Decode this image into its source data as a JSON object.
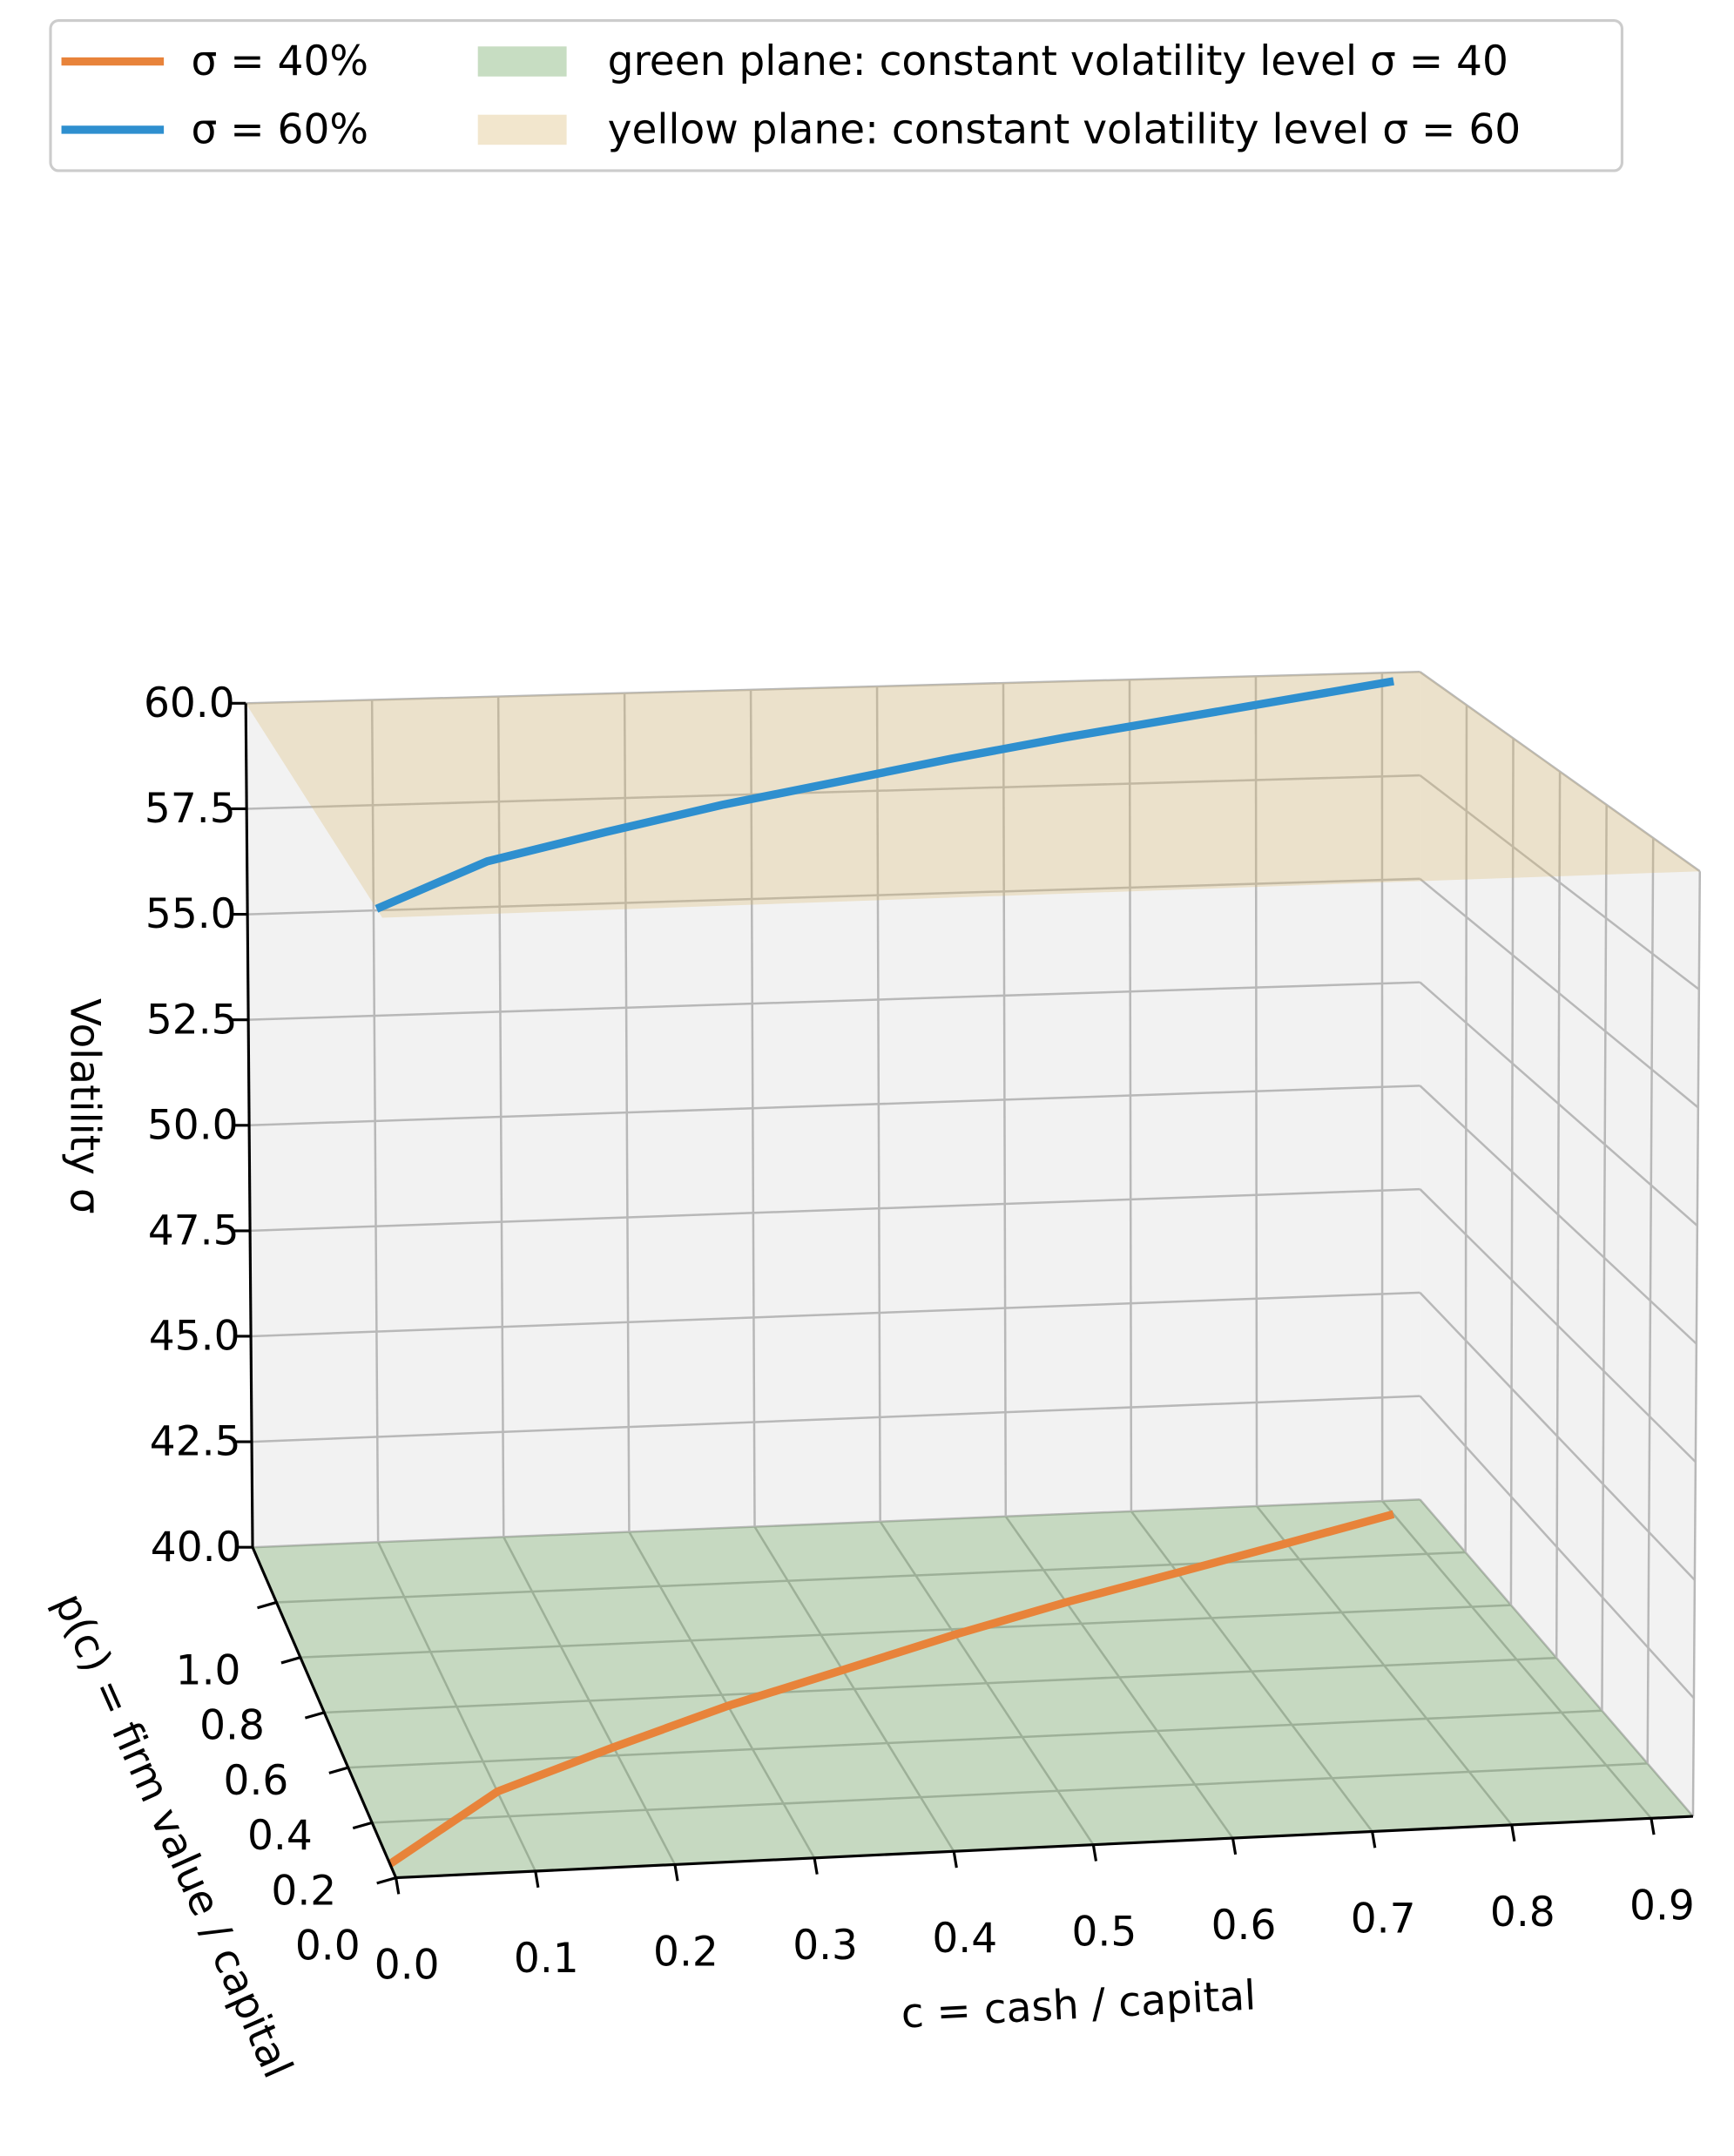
{
  "chart_data": {
    "type": "line3d",
    "xlabel": "c = cash / capital",
    "ylabel": "p(c) = firm value / capital",
    "zlabel": "Volatility σ",
    "xlim": [
      0,
      0.93
    ],
    "ylim": [
      0,
      1.2
    ],
    "zlim": [
      40,
      60
    ],
    "xticks": [
      {
        "value": 0,
        "label": "0.0"
      },
      0.1,
      0.2,
      0.3,
      0.4,
      0.5,
      0.6,
      0.7,
      0.8,
      0.9
    ],
    "yticks": [
      {
        "value": 0,
        "label": "0.0"
      },
      0.2,
      0.4,
      0.6,
      0.8,
      {
        "value": 1,
        "label": "1.0"
      }
    ],
    "zticks": [
      {
        "value": 40,
        "label": "40.0"
      },
      42.5,
      {
        "value": 45,
        "label": "45.0"
      },
      47.5,
      {
        "value": 50,
        "label": "50.0"
      },
      52.5,
      {
        "value": 55,
        "label": "55.0"
      },
      57.5,
      {
        "value": 60,
        "label": "60.0"
      }
    ],
    "grid": true,
    "series": [
      {
        "name": "σ = 40%",
        "color": "#e8833a",
        "z": 40,
        "x": [
          0,
          0.1,
          0.2,
          0.3,
          0.4,
          0.5,
          0.6,
          0.7,
          0.8,
          0.9
        ],
        "y": [
          0.05,
          0.29,
          0.43,
          0.56,
          0.67,
          0.78,
          0.88,
          0.97,
          1.06,
          1.15
        ]
      },
      {
        "name": "σ = 60%",
        "color": "#2e8fcf",
        "z": 60,
        "x": [
          0,
          0.1,
          0.2,
          0.3,
          0.4,
          0.5,
          0.6,
          0.7,
          0.8,
          0.9
        ],
        "y": [
          0.05,
          0.29,
          0.43,
          0.56,
          0.67,
          0.78,
          0.88,
          0.97,
          1.06,
          1.15
        ]
      }
    ],
    "planes": [
      {
        "name": "green plane: constant volatility level σ = 40",
        "level": 40,
        "color": "#5f9f4f"
      },
      {
        "name": "yellow plane: constant volatility level σ = 60",
        "level": 60,
        "color": "#d9b870"
      }
    ]
  }
}
